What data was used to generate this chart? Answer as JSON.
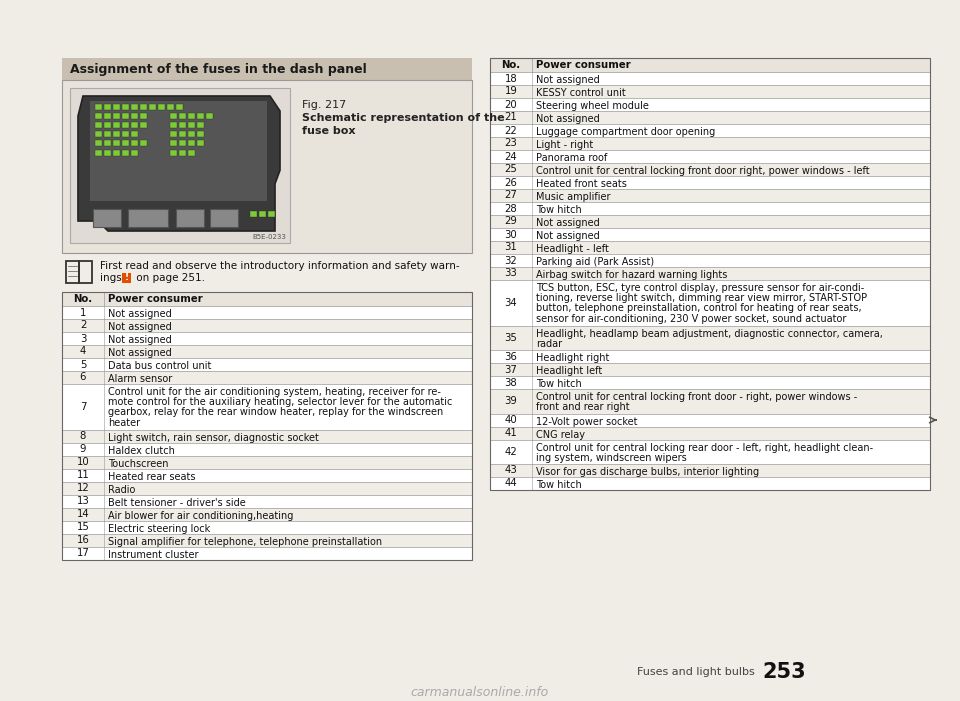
{
  "page_bg": "#f0ece6",
  "header_bg": "#c8bfb0",
  "header_text": "Assignment of the fuses in the dash panel",
  "fig_box_bg": "#e8e3db",
  "fig_caption_line1": "Fig. 217",
  "fig_caption_line2": "Schematic representation of the",
  "fig_caption_line3": "fuse box",
  "fig_code": "B5E-0233",
  "warn_line1": "First read and observe the introductory information and safety warn-",
  "warn_line2_pre": "ings ",
  "warn_line2_mid": "!",
  "warn_line2_post": " on page 251.",
  "table_header_bg": "#e8e3db",
  "table_row_bg1": "#ffffff",
  "table_row_bg2": "#f0ece6",
  "table_border": "#999999",
  "left_table_header": [
    "No.",
    "Power consumer"
  ],
  "left_rows": [
    [
      "1",
      "Not assigned"
    ],
    [
      "2",
      "Not assigned"
    ],
    [
      "3",
      "Not assigned"
    ],
    [
      "4",
      "Not assigned"
    ],
    [
      "5",
      "Data bus control unit"
    ],
    [
      "6",
      "Alarm sensor"
    ],
    [
      "7",
      "Control unit for the air conditioning system, heating, receiver for re-\nmote control for the auxiliary heating, selector lever for the automatic\ngearbox, relay for the rear window heater, replay for the windscreen\nheater"
    ],
    [
      "8",
      "Light switch, rain sensor, diagnostic socket"
    ],
    [
      "9",
      "Haldex clutch"
    ],
    [
      "10",
      "Touchscreen"
    ],
    [
      "11",
      "Heated rear seats"
    ],
    [
      "12",
      "Radio"
    ],
    [
      "13",
      "Belt tensioner - driver's side"
    ],
    [
      "14",
      "Air blower for air conditioning,heating"
    ],
    [
      "15",
      "Electric steering lock"
    ],
    [
      "16",
      "Signal amplifier for telephone, telephone preinstallation"
    ],
    [
      "17",
      "Instrument cluster"
    ]
  ],
  "right_table_header": [
    "No.",
    "Power consumer"
  ],
  "right_rows": [
    [
      "18",
      "Not assigned"
    ],
    [
      "19",
      "KESSY control unit"
    ],
    [
      "20",
      "Steering wheel module"
    ],
    [
      "21",
      "Not assigned"
    ],
    [
      "22",
      "Luggage compartment door opening"
    ],
    [
      "23",
      "Light - right"
    ],
    [
      "24",
      "Panorama roof"
    ],
    [
      "25",
      "Control unit for central locking front door right, power windows - left"
    ],
    [
      "26",
      "Heated front seats"
    ],
    [
      "27",
      "Music amplifier"
    ],
    [
      "28",
      "Tow hitch"
    ],
    [
      "29",
      "Not assigned"
    ],
    [
      "30",
      "Not assigned"
    ],
    [
      "31",
      "Headlight - left"
    ],
    [
      "32",
      "Parking aid (Park Assist)"
    ],
    [
      "33",
      "Airbag switch for hazard warning lights"
    ],
    [
      "34",
      "TCS button, ESC, tyre control display, pressure sensor for air-condi-\ntioning, reverse light switch, dimming rear view mirror, START-STOP\nbutton, telephone preinstallation, control for heating of rear seats,\nsensor for air-conditioning, 230 V power socket, sound actuator"
    ],
    [
      "35",
      "Headlight, headlamp beam adjustment, diagnostic connector, camera,\nradar"
    ],
    [
      "36",
      "Headlight right"
    ],
    [
      "37",
      "Headlight left"
    ],
    [
      "38",
      "Tow hitch"
    ],
    [
      "39",
      "Control unit for central locking front door - right, power windows -\nfront and rear right"
    ],
    [
      "40",
      "12-Volt power socket"
    ],
    [
      "41",
      "CNG relay"
    ],
    [
      "42",
      "Control unit for central locking rear door - left, right, headlight clean-\ning system, windscreen wipers"
    ],
    [
      "43",
      "Visor for gas discharge bulbs, interior lighting"
    ],
    [
      "44",
      "Tow hitch"
    ]
  ],
  "footer_text": "Fuses and light bulbs",
  "footer_page": "253",
  "watermark": "carmanualsonline.info",
  "fuse_green": "#7ecb38",
  "fuse_dark": "#3a3a3a",
  "fuse_gray": "#888888"
}
